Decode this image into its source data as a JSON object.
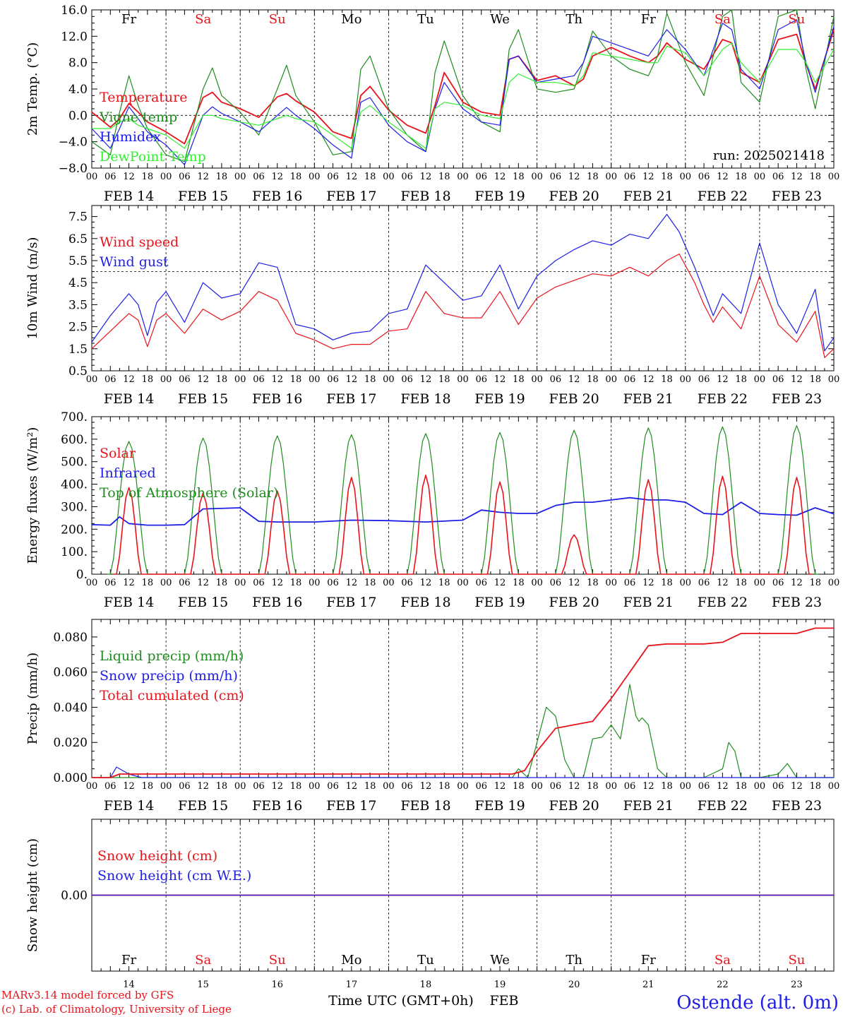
{
  "colors": {
    "red": "#e8141c",
    "green": "#1e8c1e",
    "blue": "#1e1ee6",
    "lime": "#33ee33",
    "black": "#000000",
    "station": "#1e1ee6"
  },
  "days": {
    "labels": [
      "Fr",
      "Sa",
      "Su",
      "Mo",
      "Tu",
      "We",
      "Th",
      "Fr",
      "Sa",
      "Su"
    ],
    "weekend": [
      false,
      true,
      true,
      false,
      false,
      false,
      false,
      false,
      true,
      true
    ],
    "dates": [
      "FEB 14",
      "FEB 15",
      "FEB 16",
      "FEB 17",
      "FEB 18",
      "FEB 19",
      "FEB 20",
      "FEB 21",
      "FEB 22",
      "FEB 23"
    ],
    "daynums": [
      "14",
      "15",
      "16",
      "17",
      "18",
      "19",
      "20",
      "21",
      "22",
      "23"
    ]
  },
  "hour_labels": [
    "00",
    "06",
    "12",
    "18"
  ],
  "footer": {
    "credit1": "MARv3.14 model forced by GFS",
    "credit2": "(c) Lab. of Climatology, University of Liege",
    "xaxis": "Time UTC (GMT+0h)",
    "month": "FEB",
    "station": "Ostende (alt. 0m)"
  },
  "chart_data": [
    {
      "type": "line",
      "id": "temp",
      "ylabel": "2m Temp. (°C)",
      "ylim": [
        -8,
        16
      ],
      "yticks": [
        "−8.0",
        "−4.0",
        "0.0",
        "4.0",
        "8.0",
        "12.0",
        "16.0"
      ],
      "yticks_v": [
        -8,
        -4,
        0,
        4,
        8,
        12,
        16
      ],
      "annotation": "run: 2025021418",
      "x_hours": [
        0,
        6,
        9,
        12,
        15,
        18,
        24,
        30,
        36,
        39,
        42,
        48,
        54,
        60,
        63,
        66,
        72,
        78,
        84,
        87,
        90,
        96,
        102,
        108,
        111,
        114,
        120,
        126,
        132,
        135,
        138,
        144,
        150,
        156,
        159,
        162,
        168,
        174,
        180,
        183,
        186,
        192,
        198,
        204,
        207,
        210,
        216,
        222,
        228,
        231,
        234,
        240
      ],
      "series": [
        {
          "name": "Temperature",
          "color": "red",
          "values": [
            0.5,
            -1.8,
            -0.5,
            1.8,
            0.5,
            -1,
            -2.5,
            -4.3,
            2.7,
            3.5,
            2,
            1,
            -0.3,
            2.8,
            3.3,
            2.2,
            0.5,
            -2.5,
            -3.5,
            3,
            4.4,
            0.8,
            -1.5,
            -2.7,
            1.5,
            6.5,
            2,
            0.5,
            0,
            8.5,
            9,
            5.3,
            6,
            4.5,
            5.5,
            9,
            10.3,
            9,
            8,
            9,
            11,
            8.5,
            7,
            11.5,
            11,
            6.5,
            5,
            11.5,
            12.3,
            7.8,
            4,
            13
          ]
        },
        {
          "name": "Vigne temp",
          "color": "green",
          "values": [
            -4,
            -6,
            0.5,
            6,
            1.5,
            -2,
            -6,
            -7,
            4,
            7.2,
            3,
            0.5,
            -3,
            4,
            7.6,
            3,
            -1,
            -6,
            -5.5,
            7,
            9,
            1,
            -3,
            -5.5,
            6.5,
            11.3,
            3,
            -1,
            -2.5,
            10,
            13,
            4,
            3.5,
            4,
            8,
            12.8,
            9,
            7,
            6,
            9,
            15.5,
            8,
            3,
            15,
            16,
            5,
            2,
            15,
            16,
            7,
            1,
            15
          ]
        },
        {
          "name": "Humidex",
          "color": "blue",
          "values": [
            -2,
            -5,
            -2,
            1.3,
            -0.5,
            -2.5,
            -4.5,
            -7.5,
            0,
            1.3,
            0.3,
            -1,
            -2.5,
            0,
            1.2,
            0,
            -2,
            -4.5,
            -6.5,
            2,
            2.7,
            -1.5,
            -4,
            -5.5,
            1,
            5,
            1,
            -1,
            -1.5,
            8.5,
            9,
            5,
            5.5,
            6,
            8,
            12,
            11,
            10,
            9,
            11,
            13,
            10,
            6,
            14,
            13,
            7,
            4,
            13,
            14.5,
            8,
            3.5,
            13.5
          ]
        },
        {
          "name": "DewPoint Temp",
          "color": "lime",
          "values": [
            -2,
            -2,
            -1,
            -0.5,
            -1.5,
            -2,
            -3,
            -5,
            0,
            0,
            -0.5,
            -1,
            -1.5,
            -0.5,
            0,
            -0.5,
            -1,
            -3,
            -5,
            0.5,
            1.5,
            -1,
            -3,
            -5,
            1,
            2,
            1.5,
            0,
            -0.5,
            5,
            6.3,
            5,
            5,
            4.5,
            6,
            9.5,
            9,
            8.5,
            8,
            8,
            10.5,
            9.5,
            6,
            10,
            11,
            8,
            5,
            10,
            10,
            8,
            5,
            10
          ]
        }
      ]
    },
    {
      "type": "line",
      "id": "wind",
      "ylabel": "10m Wind (m/s)",
      "ylim": [
        0.5,
        8
      ],
      "yticks": [
        "0.5",
        "1.5",
        "2.5",
        "3.5",
        "4.5",
        "5.5",
        "6.5",
        "7.5"
      ],
      "yticks_v": [
        0.5,
        1.5,
        2.5,
        3.5,
        4.5,
        5.5,
        6.5,
        7.5
      ],
      "ref_line": 5,
      "x_hours": [
        0,
        6,
        12,
        15,
        18,
        21,
        24,
        30,
        36,
        42,
        48,
        54,
        60,
        66,
        72,
        78,
        84,
        90,
        96,
        102,
        108,
        114,
        120,
        126,
        132,
        138,
        144,
        150,
        156,
        162,
        168,
        174,
        180,
        186,
        190,
        195,
        198,
        201,
        204,
        210,
        216,
        222,
        228,
        234,
        237,
        240
      ],
      "series": [
        {
          "name": "Wind speed",
          "color": "red",
          "values": [
            1.5,
            2.3,
            3.1,
            2.8,
            1.6,
            2.8,
            3.1,
            2.2,
            3.3,
            2.8,
            3.2,
            4.1,
            3.7,
            2.2,
            1.9,
            1.5,
            1.7,
            1.7,
            2.3,
            2.4,
            4.1,
            3.1,
            2.9,
            2.9,
            4.1,
            2.6,
            3.8,
            4.3,
            4.6,
            4.9,
            4.8,
            5.2,
            4.8,
            5.5,
            5.8,
            4.5,
            3.5,
            2.7,
            3.4,
            2.4,
            4.8,
            2.6,
            1.8,
            3.2,
            1.1,
            1.5
          ]
        },
        {
          "name": "Wind gust",
          "color": "blue",
          "values": [
            1.8,
            3.0,
            4.0,
            3.5,
            2.1,
            3.6,
            4.1,
            2.7,
            4.5,
            3.8,
            4.0,
            5.4,
            5.2,
            2.6,
            2.4,
            1.9,
            2.2,
            2.3,
            3.1,
            3.3,
            5.3,
            4.5,
            3.7,
            3.9,
            5.3,
            3.3,
            4.8,
            5.5,
            6.0,
            6.4,
            6.2,
            6.7,
            6.5,
            7.6,
            6.8,
            5.2,
            4.1,
            3.0,
            4.0,
            3.1,
            6.3,
            3.5,
            2.2,
            4.2,
            1.4,
            2.0
          ]
        }
      ]
    },
    {
      "type": "line",
      "id": "energy",
      "ylabel": "Energy fluxes (W/m²)",
      "ylim": [
        0,
        700
      ],
      "yticks": [
        "0.",
        "100.",
        "200.",
        "300.",
        "400.",
        "500.",
        "600.",
        "700."
      ],
      "yticks_v": [
        0,
        100,
        200,
        300,
        400,
        500,
        600,
        700
      ],
      "solar_peaks": [
        385,
        360,
        370,
        430,
        440,
        410,
        175,
        420,
        435,
        430
      ],
      "toa_peaks": [
        590,
        605,
        615,
        620,
        625,
        630,
        640,
        650,
        655,
        660
      ],
      "infrared": {
        "x_hours": [
          0,
          6,
          9,
          12,
          18,
          24,
          30,
          36,
          48,
          54,
          60,
          72,
          84,
          96,
          108,
          120,
          126,
          132,
          138,
          144,
          150,
          156,
          162,
          168,
          174,
          180,
          186,
          192,
          198,
          204,
          210,
          216,
          222,
          228,
          234,
          240
        ],
        "values": [
          220,
          218,
          255,
          225,
          218,
          218,
          220,
          290,
          295,
          235,
          232,
          232,
          240,
          238,
          232,
          240,
          285,
          275,
          270,
          270,
          305,
          320,
          320,
          330,
          340,
          330,
          330,
          320,
          270,
          265,
          320,
          270,
          265,
          262,
          295,
          268
        ]
      },
      "series": [
        {
          "name": "Solar",
          "color": "red"
        },
        {
          "name": "Infrared",
          "color": "blue"
        },
        {
          "name": "Top of Atmosphere (Solar)",
          "color": "green"
        }
      ]
    },
    {
      "type": "line",
      "id": "precip",
      "ylabel": "Precip (mm/h)",
      "ylim": [
        0,
        0.09
      ],
      "yticks": [
        "0.000",
        "0.020",
        "0.040",
        "0.060",
        "0.080"
      ],
      "yticks_v": [
        0,
        0.02,
        0.04,
        0.06,
        0.08
      ],
      "series": [
        {
          "name": "Liquid precip (mm/h)",
          "color": "green",
          "x_hours": [
            0,
            136,
            138,
            141,
            144,
            147,
            150,
            153,
            156,
            159,
            162,
            165,
            168,
            171,
            174,
            176,
            177,
            178,
            180,
            183,
            186,
            189,
            198,
            204,
            206,
            208,
            210,
            216,
            222,
            225,
            228,
            240
          ],
          "values": [
            0,
            0,
            0.005,
            0,
            0.02,
            0.04,
            0.035,
            0.01,
            0,
            0,
            0.022,
            0.023,
            0.03,
            0.022,
            0.053,
            0.035,
            0.032,
            0.034,
            0.03,
            0.005,
            0,
            0,
            0,
            0.005,
            0.02,
            0.015,
            0,
            0,
            0.002,
            0.008,
            0,
            0
          ]
        },
        {
          "name": "Snow precip (mm/h)",
          "color": "blue",
          "x_hours": [
            0,
            6,
            8,
            12,
            16,
            240
          ],
          "values": [
            0,
            0,
            0.006,
            0.002,
            0,
            0
          ]
        },
        {
          "name": "Total cumulated (cm)",
          "color": "red",
          "x_hours": [
            0,
            6,
            9,
            12,
            136,
            140,
            144,
            150,
            156,
            162,
            168,
            174,
            180,
            186,
            192,
            198,
            204,
            210,
            216,
            222,
            228,
            234,
            240
          ],
          "values": [
            0,
            0,
            0.002,
            0.002,
            0.002,
            0.004,
            0.015,
            0.028,
            0.03,
            0.032,
            0.045,
            0.06,
            0.075,
            0.076,
            0.076,
            0.076,
            0.077,
            0.082,
            0.082,
            0.082,
            0.082,
            0.085,
            0.085
          ]
        }
      ]
    },
    {
      "type": "line",
      "id": "snow",
      "ylabel": "Snow height (cm)",
      "ylim": [
        -1,
        1
      ],
      "yticks": [
        "0.00"
      ],
      "yticks_v": [
        0
      ],
      "series": [
        {
          "name": "Snow height (cm)",
          "color": "red",
          "x_hours": [
            0,
            240
          ],
          "values": [
            0,
            0
          ]
        },
        {
          "name": "Snow height (cm W.E.)",
          "color": "blue",
          "x_hours": [
            0,
            240
          ],
          "values": [
            0,
            0
          ]
        }
      ]
    }
  ]
}
